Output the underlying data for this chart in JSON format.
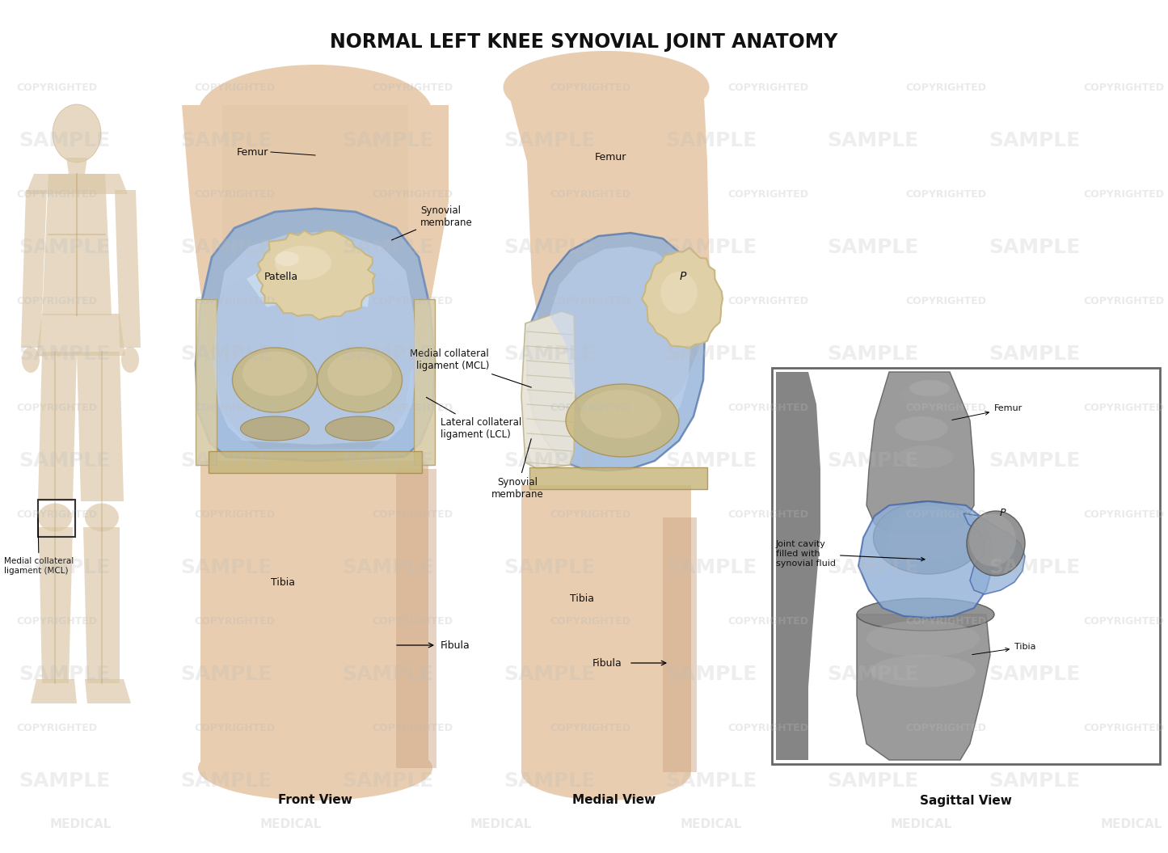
{
  "title": "NORMAL LEFT KNEE SYNOVIAL JOINT ANATOMY",
  "title_fontsize": 17,
  "title_fontweight": "bold",
  "background_color": "#ffffff",
  "front_view_label": "Front View",
  "medial_view_label": "Medial View",
  "sagittal_view_label": "Sagittal View",
  "watermark_color": "#bbbbbb",
  "watermark_alpha": 0.3,
  "skin_light": "#e8cdb0",
  "skin_mid": "#d4a882",
  "skin_dark": "#c0916a",
  "bone_light": "#e0d0a8",
  "bone_mid": "#c8b880",
  "bone_dark": "#a89050",
  "blue_light": "#c0d4f0",
  "blue_mid": "#90b0d8",
  "blue_dark": "#6080b0",
  "white_lig": "#e8e4dc",
  "gray_bone": "#888888"
}
